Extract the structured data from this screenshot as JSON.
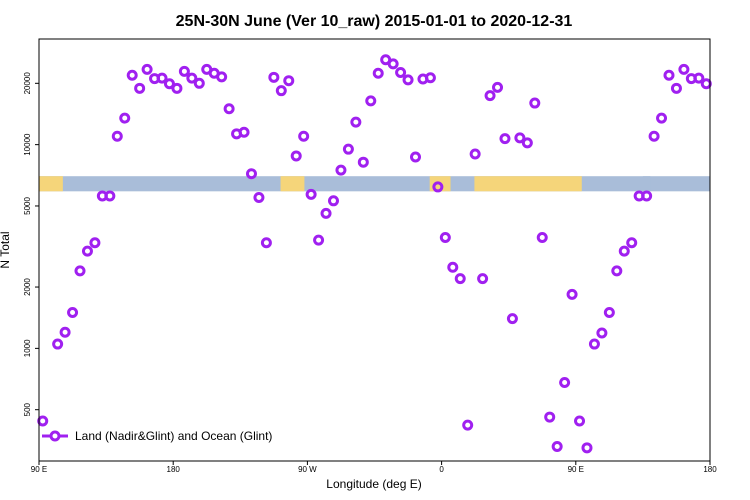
{
  "chart_data": {
    "type": "scatter",
    "title": "25N-30N June (Ver 10_raw)   2015-01-01 to 2020-12-31",
    "xlabel": "Longitude (deg E)",
    "ylabel": "N Total",
    "x_axis": {
      "range_deg_east": [
        90,
        540
      ],
      "ticks": [
        {
          "value": 90,
          "label": "90 E"
        },
        {
          "value": 180,
          "label": "180"
        },
        {
          "value": 270,
          "label": "90 W"
        },
        {
          "value": 360,
          "label": "0"
        },
        {
          "value": 450,
          "label": "90 E"
        },
        {
          "value": 540,
          "label": "180"
        }
      ]
    },
    "y_axis": {
      "scale": "log",
      "range": [
        280,
        33000
      ],
      "ticks": [
        {
          "value": 500,
          "label": "500"
        },
        {
          "value": 1000,
          "label": "1000"
        },
        {
          "value": 2000,
          "label": "2000"
        },
        {
          "value": 5000,
          "label": "5000"
        },
        {
          "value": 10000,
          "label": "10000"
        },
        {
          "value": 20000,
          "label": "20000"
        }
      ]
    },
    "grid": false,
    "legend": {
      "placement": "bottom-left",
      "entries": [
        "Land (Nadir&Glint) and Ocean (Glint)"
      ]
    },
    "series": [
      {
        "name": "Land (Nadir&Glint) and Ocean (Glint)",
        "color": "#a020f0",
        "x": [
          92.5,
          102.5,
          107.5,
          112.5,
          117.5,
          122.5,
          127.5,
          132.5,
          137.5,
          142.5,
          147.5,
          152.5,
          157.5,
          162.5,
          167.5,
          172.5,
          177.5,
          182.5,
          187.5,
          192.5,
          197.5,
          202.5,
          207.5,
          212.5,
          217.5,
          222.5,
          227.5,
          232.5,
          237.5,
          242.5,
          247.5,
          252.5,
          257.5,
          262.5,
          267.5,
          272.5,
          277.5,
          282.5,
          287.5,
          292.5,
          297.5,
          302.5,
          307.5,
          312.5,
          317.5,
          322.5,
          327.5,
          332.5,
          337.5,
          342.5,
          347.5,
          352.5,
          357.5,
          362.5,
          367.5,
          372.5,
          377.5,
          382.5,
          387.5,
          392.5,
          397.5,
          402.5,
          407.5,
          412.5,
          417.5,
          422.5,
          427.5,
          432.5,
          437.5,
          442.5,
          447.5,
          452.5,
          457.5,
          462.5,
          467.5,
          472.5,
          477.5,
          482.5,
          487.5,
          492.5,
          497.5,
          502.5,
          507.5,
          512.5,
          517.5,
          522.5,
          527.5,
          532.5,
          537.5
        ],
        "y": [
          440,
          1050,
          1200,
          1500,
          2400,
          3000,
          3300,
          5600,
          5600,
          11000,
          13500,
          21900,
          18900,
          23400,
          21100,
          21200,
          19900,
          18900,
          22900,
          21200,
          20000,
          23400,
          22400,
          21500,
          15000,
          11300,
          11500,
          7200,
          5500,
          3300,
          21400,
          18400,
          20600,
          8800,
          11000,
          5700,
          3400,
          4600,
          5300,
          7500,
          9500,
          12900,
          8200,
          16400,
          22400,
          26100,
          24900,
          22600,
          20800,
          8700,
          21000,
          21300,
          6200,
          3500,
          2500,
          2200,
          420,
          9000,
          2200,
          17400,
          19100,
          10700,
          1400,
          10800,
          10200,
          16000,
          3500,
          460,
          330,
          680,
          1840,
          440,
          325,
          1050,
          1190,
          1500,
          2400,
          3000,
          3300,
          5600,
          5600,
          11000,
          13500,
          21900,
          18900,
          23400,
          21100,
          21200,
          19900
        ]
      }
    ],
    "map_band": {
      "range_n_total": [
        5900,
        7000
      ],
      "ocean_color": "#a9bdd9",
      "land_color": "#f5d57a"
    }
  }
}
